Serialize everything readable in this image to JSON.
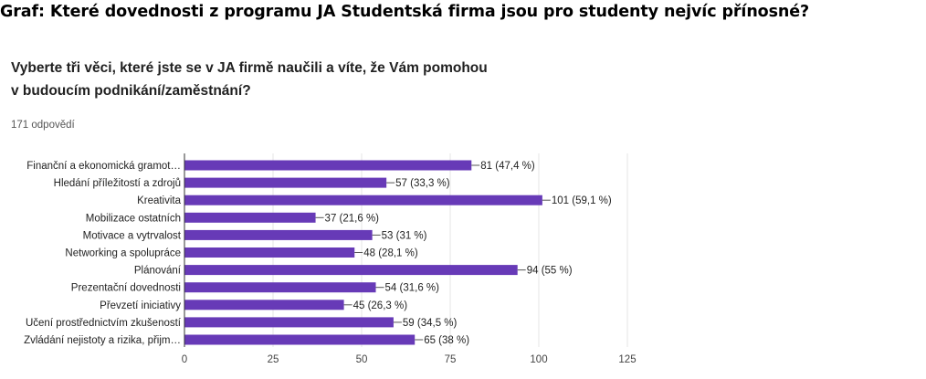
{
  "headline": "Graf: Které dovednosti z programu JA Studentská firma jsou pro studenty nejvíc přínosné?",
  "question": {
    "line1": "Vyberte tři věci, které jste se v JA firmě naučili a víte, že Vám pomohou",
    "line2": "v budoucím podnikání/zaměstnání?"
  },
  "response_count": "171 odpovědí",
  "colors": {
    "bar": "#673ab7",
    "grid": "#e6e6e6",
    "axis": "#333333"
  },
  "chart_data": {
    "type": "bar",
    "orientation": "horizontal",
    "title": "",
    "xlabel": "",
    "ylabel": "",
    "xlim": [
      0,
      125
    ],
    "ticks": [
      0,
      25,
      50,
      75,
      100,
      125
    ],
    "grid": true,
    "categories": [
      "Finanční a ekonomická gramot…",
      "Hledání příležitostí a zdrojů",
      "Kreativita",
      "Mobilizace ostatních",
      "Motivace a vytrvalost",
      "Networking a spolupráce",
      "Plánování",
      "Prezentační dovednosti",
      "Převzetí iniciativy",
      "Učení prostřednictvím zkušeností",
      "Zvládání nejistoty a rizika, přijm…"
    ],
    "values": [
      81,
      57,
      101,
      37,
      53,
      48,
      94,
      54,
      45,
      59,
      65
    ],
    "value_labels": [
      "81 (47,4 %)",
      "57 (33,3 %)",
      "101 (59,1 %)",
      "37 (21,6 %)",
      "53 (31 %)",
      "48 (28,1 %)",
      "94 (55 %)",
      "54 (31,6 %)",
      "45 (26,3 %)",
      "59 (34,5 %)",
      "65 (38 %)"
    ]
  }
}
